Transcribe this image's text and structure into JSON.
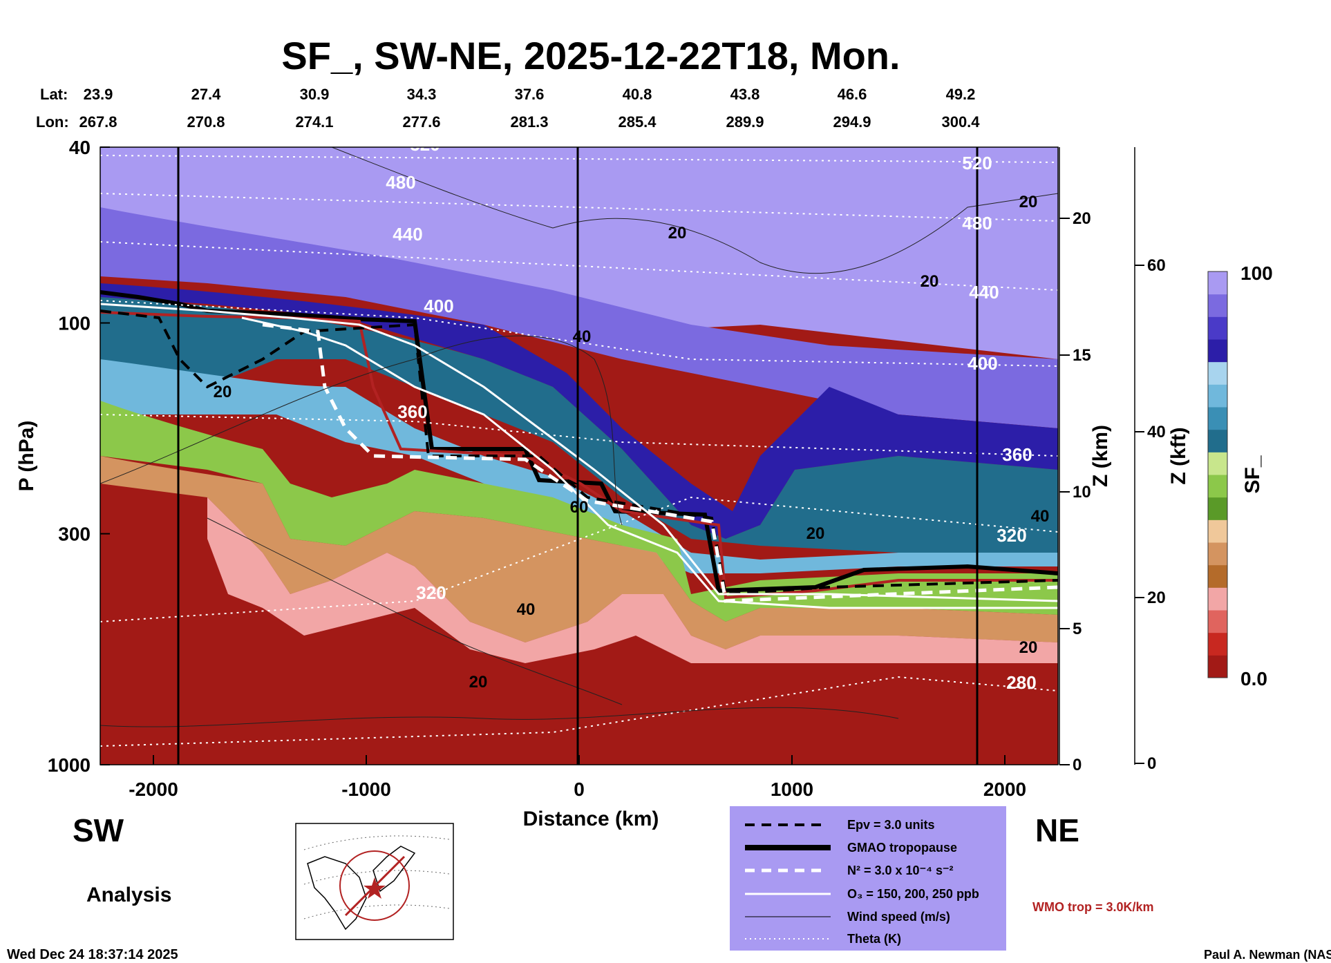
{
  "chart_data": {
    "type": "heatmap",
    "title": "SF_, SW-NE, 2025-12-22T18, Mon.",
    "header_rows": {
      "lat_label": "Lat:",
      "lon_label": "Lon:",
      "lat": [
        "23.9",
        "27.4",
        "30.9",
        "34.3",
        "37.6",
        "40.8",
        "43.8",
        "46.6",
        "49.2"
      ],
      "lon": [
        "267.8",
        "270.8",
        "274.1",
        "277.6",
        "281.3",
        "285.4",
        "289.9",
        "294.9",
        "300.4"
      ]
    },
    "xlabel": "Distance (km)",
    "ylabel": "P (hPa)",
    "xlim": [
      -2250,
      2250
    ],
    "ylim": [
      1000,
      40
    ],
    "x_ticks": [
      {
        "value": -2000,
        "label": "-2000"
      },
      {
        "value": -1000,
        "label": "-1000"
      },
      {
        "value": 0,
        "label": "0"
      },
      {
        "value": 1000,
        "label": "1000"
      },
      {
        "value": 2000,
        "label": "2000"
      }
    ],
    "y_ticks": [
      {
        "value": 40,
        "label": "40"
      },
      {
        "value": 100,
        "label": "100"
      },
      {
        "value": 300,
        "label": "300"
      },
      {
        "value": 1000,
        "label": "1000"
      }
    ],
    "z_km_label": "Z (km)",
    "z_km_ticks": [
      "0",
      "5",
      "10",
      "15",
      "20"
    ],
    "z_kft_label": "Z (kft)",
    "z_kft_ticks": [
      "0",
      "20",
      "40",
      "60"
    ],
    "colorbar": {
      "label": "SF_",
      "max_label": "100",
      "min_label": "0.0",
      "colors": [
        "#a21a16",
        "#c82820",
        "#e0645e",
        "#f2a6a6",
        "#b46b2a",
        "#d49460",
        "#f0c89a",
        "#5a9a28",
        "#8cc84a",
        "#c8e68c",
        "#216d8c",
        "#3a8fb5",
        "#70b8dc",
        "#a8d4ee",
        "#2c1ea8",
        "#4a3ac8",
        "#7b6ae0",
        "#a99af2"
      ]
    },
    "theta_labels": [
      "520",
      "480",
      "440",
      "400",
      "360",
      "320",
      "280"
    ],
    "wind_labels": [
      "20",
      "40",
      "60"
    ],
    "section_ends": {
      "left": "SW",
      "right": "NE"
    },
    "product": "Analysis",
    "legend": [
      {
        "label": "Epv = 3.0 units",
        "style": "dashed-black"
      },
      {
        "label": "GMAO tropopause",
        "style": "thick-black"
      },
      {
        "label": "N² = 3.0 x 10⁻⁴ s⁻²",
        "style": "dashed-white"
      },
      {
        "label": "O₃ = 150, 200, 250 ppb",
        "style": "solid-white"
      },
      {
        "label": "Wind speed (m/s)",
        "style": "thin-black"
      },
      {
        "label": "Theta (K)",
        "style": "dotted-white"
      }
    ],
    "wmo_note": "WMO trop = 3.0K/km",
    "timestamp": "Wed Dec 24 18:37:14 2025",
    "credit": "Paul A. Newman (NASA"
  }
}
